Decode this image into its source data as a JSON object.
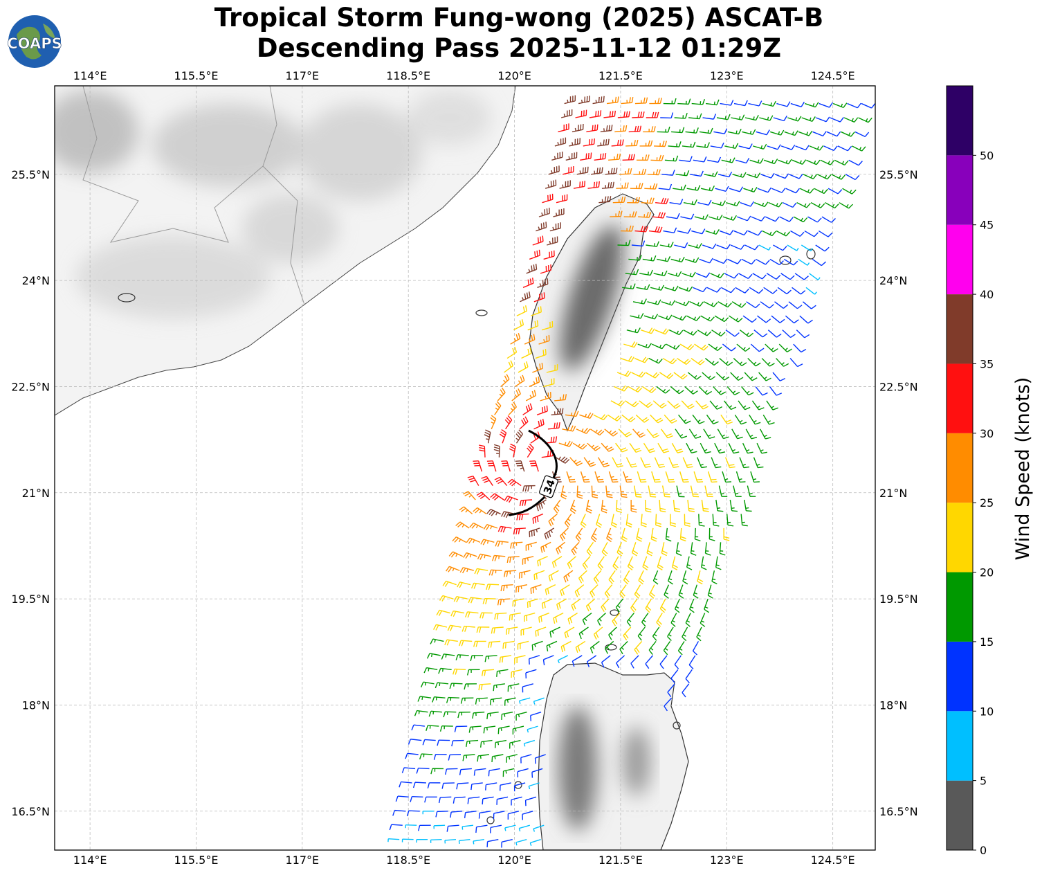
{
  "header": {
    "title_line1": "Tropical Storm Fung-wong (2025) ASCAT-B",
    "title_line2": "Descending Pass 2025-11-12 01:29Z",
    "logo_text": "COAPS"
  },
  "map": {
    "lon_range": [
      113.5,
      125.1
    ],
    "lat_range": [
      15.95,
      26.75
    ],
    "lon_ticks": [
      "114°E",
      "115.5°E",
      "117°E",
      "118.5°E",
      "120°E",
      "121.5°E",
      "123°E",
      "124.5°E"
    ],
    "lat_ticks": [
      "16.5°N",
      "18°N",
      "19.5°N",
      "21°N",
      "22.5°N",
      "24°N",
      "25.5°N"
    ],
    "lon_tick_values": [
      114,
      115.5,
      117,
      118.5,
      120,
      121.5,
      123,
      124.5
    ],
    "lat_tick_values": [
      16.5,
      18,
      19.5,
      21,
      22.5,
      24,
      25.5
    ],
    "gridlines": true,
    "wind_radius_label": "34",
    "wind_radius_units": "kt"
  },
  "colorbar": {
    "title": "Wind Speed (knots)",
    "bins": [
      0,
      5,
      10,
      15,
      20,
      25,
      30,
      35,
      40,
      45,
      50,
      55
    ],
    "tick_labels": [
      "0",
      "5",
      "10",
      "15",
      "20",
      "25",
      "30",
      "35",
      "40",
      "45",
      "50"
    ],
    "colors": [
      "#595959",
      "#00bfff",
      "#0033ff",
      "#009900",
      "#ffd700",
      "#ff8c00",
      "#ff1010",
      "#803b2a",
      "#ff00ee",
      "#8800bb",
      "#2e0066"
    ]
  }
}
